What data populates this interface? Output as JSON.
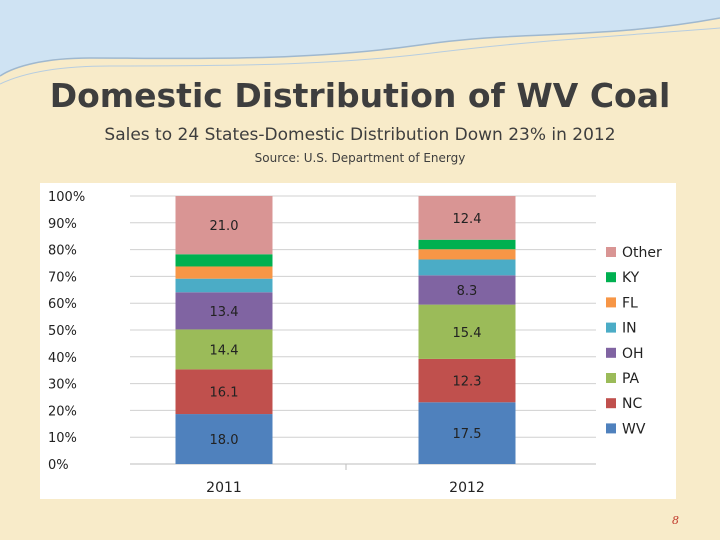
{
  "slide": {
    "title": "Domestic Distribution of WV Coal",
    "subtitle": "Sales to 24 States-Domestic Distribution Down 23% in 2012",
    "source": "Source: U.S. Department of Energy",
    "page_number": "8"
  },
  "chart_data": {
    "type": "bar",
    "stacked": true,
    "title": "",
    "xlabel": "",
    "ylabel": "",
    "ylim": [
      0,
      100
    ],
    "y_ticks": [
      "0%",
      "10%",
      "20%",
      "30%",
      "40%",
      "50%",
      "60%",
      "70%",
      "80%",
      "90%",
      "100%"
    ],
    "categories": [
      "2011",
      "2012"
    ],
    "grid": true,
    "legend_position": "right",
    "series": [
      {
        "name": "WV",
        "color": "#4f81bd",
        "values": [
          18.0,
          17.5
        ],
        "labels": [
          "18.0",
          "17.5"
        ]
      },
      {
        "name": "NC",
        "color": "#c0504d",
        "values": [
          16.1,
          12.3
        ],
        "labels": [
          "16.1",
          "12.3"
        ]
      },
      {
        "name": "PA",
        "color": "#9bbb59",
        "values": [
          14.4,
          15.4
        ],
        "labels": [
          "14.4",
          "15.4"
        ]
      },
      {
        "name": "OH",
        "color": "#8064a2",
        "values": [
          13.4,
          8.3
        ],
        "labels": [
          "13.4",
          "8.3"
        ]
      },
      {
        "name": "IN",
        "color": "#4bacc6",
        "values": [
          4.9,
          4.5
        ],
        "labels": [
          "",
          ""
        ]
      },
      {
        "name": "FL",
        "color": "#f79646",
        "values": [
          4.4,
          2.9
        ],
        "labels": [
          "",
          ""
        ]
      },
      {
        "name": "KY",
        "color": "#00b050",
        "values": [
          4.4,
          2.7
        ],
        "labels": [
          "",
          ""
        ]
      },
      {
        "name": "Other",
        "color": "#d99594",
        "values": [
          21.0,
          12.4
        ],
        "labels": [
          "21.0",
          "12.4"
        ]
      }
    ]
  }
}
